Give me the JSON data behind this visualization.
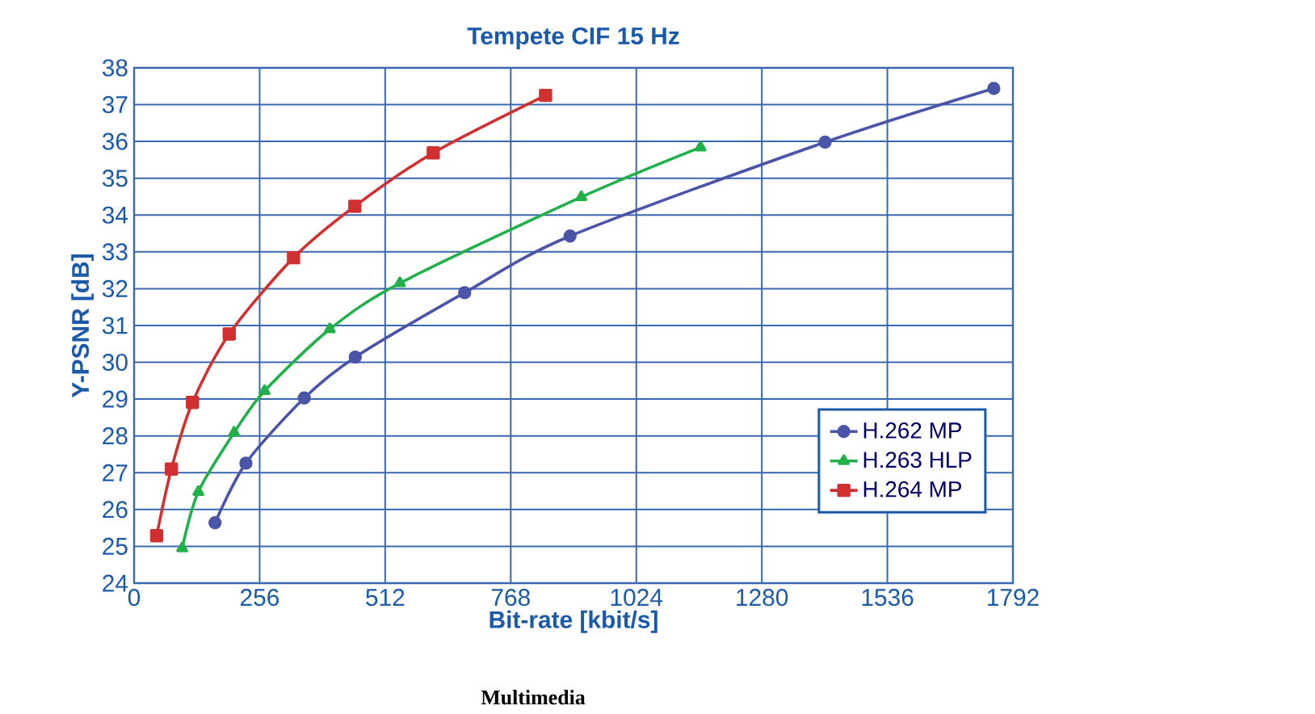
{
  "chart_data": {
    "type": "line",
    "title": "Tempete CIF 15 Hz",
    "xlabel": "Bit-rate [kbit/s]",
    "ylabel": "Y-PSNR [dB]",
    "xlim": [
      0,
      1792
    ],
    "xticks": [
      0,
      256,
      512,
      768,
      1024,
      1280,
      1536,
      1792
    ],
    "ylim": [
      24,
      38
    ],
    "yticks": [
      24,
      25,
      26,
      27,
      28,
      29,
      30,
      31,
      32,
      33,
      34,
      35,
      36,
      37,
      38
    ],
    "grid": true,
    "legend": "bottom right",
    "line_style": "solid",
    "annotations": [
      "Multimedia"
    ],
    "series": [
      {
        "name": "H.262 MP",
        "color": "#4a55a8",
        "marker": "circle",
        "x": [
          165,
          228,
          347,
          451,
          674,
          889,
          1409,
          1753
        ],
        "values": [
          25.64,
          27.26,
          29.03,
          30.14,
          31.89,
          33.43,
          35.98,
          37.44
        ]
      },
      {
        "name": "H.263 HLP",
        "color": "#22b04a",
        "marker": "triangle",
        "x": [
          98,
          131,
          204,
          266,
          399,
          542,
          912,
          1155
        ],
        "values": [
          24.95,
          26.48,
          28.09,
          29.22,
          30.9,
          32.15,
          34.49,
          35.84
        ]
      },
      {
        "name": "H.264 MP",
        "color": "#d03030",
        "marker": "square",
        "x": [
          46,
          76,
          119,
          194,
          325,
          450,
          610,
          839
        ],
        "values": [
          25.29,
          27.1,
          28.91,
          30.77,
          32.84,
          34.24,
          35.69,
          37.25
        ]
      }
    ]
  }
}
